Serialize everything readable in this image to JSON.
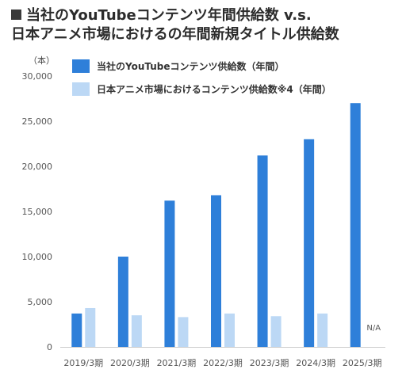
{
  "title": {
    "line1": "当社のYouTubeコンテンツ年間供給数 v.s.",
    "line2": "日本アニメ市場におけるの年間新規タイトル供給数"
  },
  "colors": {
    "series1": "#2e7fd9",
    "series2": "#bcd8f5",
    "axis": "#cccccc"
  },
  "chart_data": {
    "type": "bar",
    "title": "当社のYouTubeコンテンツ年間供給数 v.s. 日本アニメ市場におけるの年間新規タイトル供給数",
    "ylabel": "（本）",
    "ylim": [
      0,
      30000
    ],
    "yticks": [
      "0",
      "5,000",
      "10,000",
      "15,000",
      "20,000",
      "25,000",
      "30,000"
    ],
    "grid": false,
    "legend_position": "top-left",
    "categories": [
      "2019/3期",
      "2020/3期",
      "2021/3期",
      "2022/3期",
      "2023/3期",
      "2024/3期",
      "2025/3期"
    ],
    "series": [
      {
        "name": "当社のYouTubeコンテンツ供給数（年間）",
        "values": [
          3700,
          10000,
          16200,
          16800,
          21200,
          23000,
          27000
        ]
      },
      {
        "name": "日本アニメ市場におけるコンテンツ供給数※4（年間）",
        "values": [
          4300,
          3500,
          3300,
          3700,
          3400,
          3700,
          null
        ]
      }
    ],
    "annotations": [
      "N/A"
    ]
  }
}
